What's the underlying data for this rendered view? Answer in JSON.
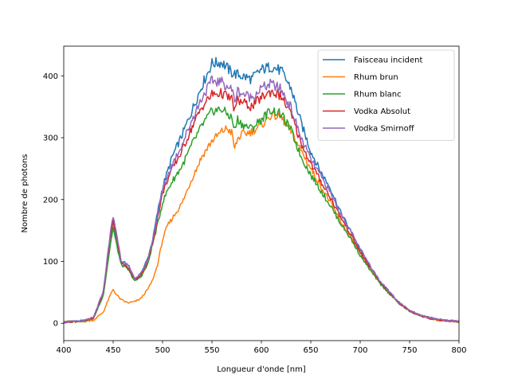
{
  "chart_data": {
    "type": "line",
    "title": "",
    "xlabel": "Longueur d'onde [nm]",
    "ylabel": "Nombre de photons",
    "xlim": [
      400,
      800
    ],
    "ylim": [
      -28,
      448
    ],
    "xticks": [
      400,
      450,
      500,
      550,
      600,
      650,
      700,
      750,
      800
    ],
    "yticks": [
      0,
      100,
      200,
      300,
      400
    ],
    "grid": false,
    "legend_position": "top-right",
    "series": [
      {
        "name": "Faisceau incident",
        "color": "#1f77b4",
        "points": [
          [
            400,
            2
          ],
          [
            410,
            3
          ],
          [
            420,
            4
          ],
          [
            430,
            8
          ],
          [
            440,
            45
          ],
          [
            447,
            130
          ],
          [
            450,
            165
          ],
          [
            453,
            140
          ],
          [
            458,
            100
          ],
          [
            465,
            95
          ],
          [
            472,
            72
          ],
          [
            478,
            80
          ],
          [
            485,
            105
          ],
          [
            490,
            135
          ],
          [
            495,
            180
          ],
          [
            500,
            220
          ],
          [
            505,
            245
          ],
          [
            510,
            270
          ],
          [
            520,
            305
          ],
          [
            530,
            345
          ],
          [
            540,
            385
          ],
          [
            550,
            420
          ],
          [
            560,
            422
          ],
          [
            570,
            405
          ],
          [
            580,
            400
          ],
          [
            590,
            395
          ],
          [
            600,
            410
          ],
          [
            610,
            415
          ],
          [
            620,
            408
          ],
          [
            630,
            380
          ],
          [
            640,
            325
          ],
          [
            650,
            278
          ],
          [
            660,
            245
          ],
          [
            670,
            218
          ],
          [
            680,
            180
          ],
          [
            690,
            150
          ],
          [
            700,
            118
          ],
          [
            710,
            92
          ],
          [
            720,
            68
          ],
          [
            730,
            50
          ],
          [
            740,
            33
          ],
          [
            750,
            20
          ],
          [
            760,
            13
          ],
          [
            770,
            9
          ],
          [
            780,
            6
          ],
          [
            790,
            4
          ],
          [
            800,
            3
          ]
        ]
      },
      {
        "name": "Rhum brun",
        "color": "#ff7f0e",
        "points": [
          [
            400,
            1
          ],
          [
            410,
            2
          ],
          [
            420,
            3
          ],
          [
            430,
            5
          ],
          [
            440,
            18
          ],
          [
            447,
            45
          ],
          [
            450,
            55
          ],
          [
            453,
            47
          ],
          [
            458,
            38
          ],
          [
            465,
            33
          ],
          [
            472,
            35
          ],
          [
            478,
            40
          ],
          [
            485,
            55
          ],
          [
            490,
            70
          ],
          [
            495,
            95
          ],
          [
            500,
            135
          ],
          [
            505,
            158
          ],
          [
            510,
            170
          ],
          [
            520,
            195
          ],
          [
            530,
            235
          ],
          [
            540,
            270
          ],
          [
            550,
            295
          ],
          [
            560,
            310
          ],
          [
            565,
            315
          ],
          [
            570,
            308
          ],
          [
            573,
            282
          ],
          [
            576,
            298
          ],
          [
            580,
            305
          ],
          [
            590,
            310
          ],
          [
            600,
            320
          ],
          [
            610,
            337
          ],
          [
            620,
            333
          ],
          [
            630,
            310
          ],
          [
            640,
            280
          ],
          [
            650,
            250
          ],
          [
            660,
            222
          ],
          [
            670,
            195
          ],
          [
            680,
            165
          ],
          [
            690,
            140
          ],
          [
            700,
            112
          ],
          [
            710,
            88
          ],
          [
            720,
            66
          ],
          [
            730,
            48
          ],
          [
            740,
            32
          ],
          [
            750,
            20
          ],
          [
            760,
            13
          ],
          [
            770,
            8
          ],
          [
            780,
            5
          ],
          [
            790,
            4
          ],
          [
            800,
            2
          ]
        ]
      },
      {
        "name": "Rhum blanc",
        "color": "#2ca02c",
        "points": [
          [
            400,
            2
          ],
          [
            410,
            3
          ],
          [
            420,
            4
          ],
          [
            430,
            8
          ],
          [
            440,
            45
          ],
          [
            447,
            125
          ],
          [
            450,
            155
          ],
          [
            453,
            130
          ],
          [
            458,
            95
          ],
          [
            465,
            87
          ],
          [
            472,
            68
          ],
          [
            478,
            75
          ],
          [
            485,
            95
          ],
          [
            490,
            128
          ],
          [
            495,
            160
          ],
          [
            500,
            195
          ],
          [
            505,
            215
          ],
          [
            510,
            230
          ],
          [
            520,
            255
          ],
          [
            530,
            290
          ],
          [
            540,
            320
          ],
          [
            550,
            343
          ],
          [
            560,
            346
          ],
          [
            570,
            332
          ],
          [
            573,
            312
          ],
          [
            576,
            330
          ],
          [
            580,
            322
          ],
          [
            590,
            315
          ],
          [
            600,
            330
          ],
          [
            610,
            345
          ],
          [
            620,
            338
          ],
          [
            630,
            312
          ],
          [
            640,
            270
          ],
          [
            650,
            240
          ],
          [
            660,
            215
          ],
          [
            670,
            190
          ],
          [
            680,
            162
          ],
          [
            690,
            138
          ],
          [
            700,
            110
          ],
          [
            710,
            86
          ],
          [
            720,
            64
          ],
          [
            730,
            47
          ],
          [
            740,
            31
          ],
          [
            750,
            20
          ],
          [
            760,
            13
          ],
          [
            770,
            8
          ],
          [
            780,
            5
          ],
          [
            790,
            4
          ],
          [
            800,
            3
          ]
        ]
      },
      {
        "name": "Vodka Absolut",
        "color": "#d62728",
        "points": [
          [
            400,
            2
          ],
          [
            410,
            3
          ],
          [
            420,
            4
          ],
          [
            430,
            8
          ],
          [
            440,
            50
          ],
          [
            447,
            140
          ],
          [
            450,
            168
          ],
          [
            453,
            145
          ],
          [
            458,
            98
          ],
          [
            465,
            90
          ],
          [
            472,
            70
          ],
          [
            478,
            78
          ],
          [
            485,
            100
          ],
          [
            490,
            130
          ],
          [
            495,
            170
          ],
          [
            500,
            210
          ],
          [
            505,
            232
          ],
          [
            510,
            250
          ],
          [
            520,
            280
          ],
          [
            530,
            318
          ],
          [
            540,
            350
          ],
          [
            550,
            370
          ],
          [
            560,
            372
          ],
          [
            570,
            362
          ],
          [
            573,
            344
          ],
          [
            576,
            360
          ],
          [
            580,
            358
          ],
          [
            590,
            350
          ],
          [
            600,
            365
          ],
          [
            610,
            375
          ],
          [
            620,
            367
          ],
          [
            630,
            338
          ],
          [
            640,
            292
          ],
          [
            650,
            258
          ],
          [
            660,
            230
          ],
          [
            670,
            203
          ],
          [
            680,
            172
          ],
          [
            690,
            145
          ],
          [
            700,
            115
          ],
          [
            710,
            90
          ],
          [
            720,
            67
          ],
          [
            730,
            49
          ],
          [
            740,
            32
          ],
          [
            750,
            20
          ],
          [
            760,
            13
          ],
          [
            770,
            8
          ],
          [
            780,
            5
          ],
          [
            790,
            4
          ],
          [
            800,
            3
          ]
        ]
      },
      {
        "name": "Vodka Smirnoff",
        "color": "#9467bd",
        "points": [
          [
            400,
            2
          ],
          [
            410,
            3
          ],
          [
            420,
            4
          ],
          [
            430,
            9
          ],
          [
            440,
            52
          ],
          [
            447,
            145
          ],
          [
            450,
            172
          ],
          [
            453,
            150
          ],
          [
            458,
            102
          ],
          [
            465,
            93
          ],
          [
            472,
            72
          ],
          [
            478,
            80
          ],
          [
            485,
            103
          ],
          [
            490,
            135
          ],
          [
            495,
            175
          ],
          [
            500,
            215
          ],
          [
            505,
            238
          ],
          [
            510,
            258
          ],
          [
            520,
            290
          ],
          [
            530,
            330
          ],
          [
            540,
            365
          ],
          [
            550,
            392
          ],
          [
            560,
            390
          ],
          [
            570,
            378
          ],
          [
            573,
            360
          ],
          [
            576,
            376
          ],
          [
            580,
            372
          ],
          [
            590,
            365
          ],
          [
            600,
            380
          ],
          [
            610,
            387
          ],
          [
            620,
            378
          ],
          [
            630,
            348
          ],
          [
            640,
            300
          ],
          [
            650,
            265
          ],
          [
            660,
            238
          ],
          [
            670,
            210
          ],
          [
            680,
            178
          ],
          [
            690,
            150
          ],
          [
            700,
            120
          ],
          [
            710,
            93
          ],
          [
            720,
            69
          ],
          [
            730,
            50
          ],
          [
            740,
            33
          ],
          [
            750,
            21
          ],
          [
            760,
            14
          ],
          [
            770,
            9
          ],
          [
            780,
            6
          ],
          [
            790,
            4
          ],
          [
            800,
            3
          ]
        ]
      }
    ]
  }
}
